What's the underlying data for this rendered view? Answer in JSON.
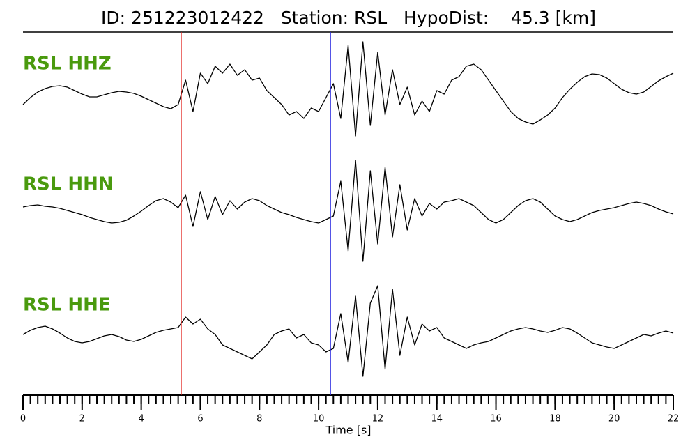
{
  "chart_data": {
    "type": "line",
    "title": "ID: 251223012422   Station: RSL   HypoDist:    45.3 [km]",
    "xlabel": "Time [s]",
    "xlim": [
      0,
      22
    ],
    "xticks": [
      0,
      2,
      4,
      6,
      8,
      10,
      12,
      14,
      16,
      18,
      20,
      22
    ],
    "xminorticks": [
      0,
      0.25,
      0.5,
      0.75,
      1,
      1.25,
      1.5,
      1.75,
      2,
      2.25,
      2.5,
      2.75,
      3,
      3.25,
      3.5,
      3.75,
      4,
      4.25,
      4.5,
      4.75,
      5,
      5.25,
      5.5,
      5.75,
      6,
      6.25,
      6.5,
      6.75,
      7,
      7.25,
      7.5,
      7.75,
      8,
      8.25,
      8.5,
      8.75,
      9,
      9.25,
      9.5,
      9.75,
      10,
      10.25,
      10.5,
      10.75,
      11,
      11.25,
      11.5,
      11.75,
      12,
      12.25,
      12.5,
      12.75,
      13,
      13.25,
      13.5,
      13.75,
      14,
      14.25,
      14.5,
      14.75,
      15,
      15.25,
      15.5,
      15.75,
      16,
      16.25,
      16.5,
      16.75,
      17,
      17.25,
      17.5,
      17.75,
      18,
      18.25,
      18.5,
      18.75,
      19,
      19.25,
      19.5,
      19.75,
      20,
      20.25,
      20.5,
      20.75,
      21,
      21.25,
      21.5,
      21.75,
      22
    ],
    "ylim": [
      -100,
      100
    ],
    "label_color": "#4a9a0e",
    "picks": [
      {
        "x": 5.35,
        "color": "#e0201a"
      },
      {
        "x": 10.4,
        "color": "#2a2ae0"
      }
    ],
    "x": [
      0,
      0.25,
      0.5,
      0.75,
      1,
      1.25,
      1.5,
      1.75,
      2,
      2.25,
      2.5,
      2.75,
      3,
      3.25,
      3.5,
      3.75,
      4,
      4.25,
      4.5,
      4.75,
      5,
      5.25,
      5.5,
      5.75,
      6,
      6.25,
      6.5,
      6.75,
      7,
      7.25,
      7.5,
      7.75,
      8,
      8.25,
      8.5,
      8.75,
      9,
      9.25,
      9.5,
      9.75,
      10,
      10.25,
      10.5,
      10.75,
      11,
      11.25,
      11.5,
      11.75,
      12,
      12.25,
      12.5,
      12.75,
      13,
      13.25,
      13.5,
      13.75,
      14,
      14.25,
      14.5,
      14.75,
      15,
      15.25,
      15.5,
      15.75,
      16,
      16.25,
      16.5,
      16.75,
      17,
      17.25,
      17.5,
      17.75,
      18,
      18.25,
      18.5,
      18.75,
      19,
      19.25,
      19.5,
      19.75,
      20,
      20.25,
      20.5,
      20.75,
      21,
      21.25,
      21.5,
      21.75,
      22
    ],
    "series": [
      {
        "name": "RSL HHZ",
        "color": "#000000",
        "values": [
          -10,
          0,
          8,
          13,
          16,
          17,
          15,
          10,
          5,
          1,
          1,
          4,
          7,
          9,
          8,
          6,
          2,
          -3,
          -8,
          -13,
          -16,
          -10,
          25,
          -20,
          35,
          20,
          45,
          35,
          48,
          32,
          40,
          25,
          28,
          10,
          0,
          -10,
          -25,
          -20,
          -30,
          -15,
          -20,
          0,
          20,
          -30,
          75,
          -55,
          80,
          -40,
          65,
          -25,
          40,
          -10,
          15,
          -25,
          -5,
          -20,
          10,
          5,
          25,
          30,
          45,
          48,
          40,
          25,
          10,
          -5,
          -20,
          -30,
          -35,
          -38,
          -32,
          -25,
          -15,
          0,
          12,
          22,
          30,
          34,
          33,
          28,
          20,
          12,
          7,
          5,
          8,
          16,
          24,
          30,
          35
        ]
      },
      {
        "name": "RSL HHN",
        "color": "#000000",
        "values": [
          3,
          5,
          6,
          4,
          3,
          1,
          -2,
          -5,
          -8,
          -12,
          -15,
          -18,
          -20,
          -19,
          -16,
          -10,
          -3,
          5,
          12,
          15,
          10,
          2,
          20,
          -25,
          25,
          -15,
          18,
          -8,
          12,
          0,
          10,
          15,
          12,
          5,
          0,
          -5,
          -8,
          -12,
          -15,
          -18,
          -20,
          -15,
          -10,
          40,
          -60,
          70,
          -75,
          55,
          -50,
          60,
          -40,
          35,
          -30,
          15,
          -10,
          8,
          0,
          10,
          12,
          15,
          10,
          5,
          -5,
          -15,
          -20,
          -15,
          -5,
          5,
          12,
          15,
          10,
          0,
          -10,
          -15,
          -18,
          -15,
          -10,
          -5,
          -2,
          0,
          2,
          5,
          8,
          10,
          8,
          5,
          0,
          -4,
          -7
        ]
      },
      {
        "name": "RSL HHE",
        "color": "#000000",
        "values": [
          0,
          6,
          10,
          12,
          8,
          2,
          -5,
          -10,
          -12,
          -10,
          -6,
          -2,
          0,
          -3,
          -8,
          -10,
          -7,
          -2,
          3,
          6,
          8,
          10,
          25,
          15,
          22,
          8,
          0,
          -15,
          -20,
          -25,
          -30,
          -35,
          -25,
          -15,
          0,
          5,
          8,
          -5,
          0,
          -12,
          -15,
          -25,
          -20,
          30,
          -40,
          55,
          -60,
          45,
          70,
          -50,
          65,
          -30,
          25,
          -15,
          15,
          5,
          10,
          -5,
          -10,
          -15,
          -20,
          -15,
          -12,
          -10,
          -5,
          0,
          5,
          8,
          10,
          8,
          5,
          3,
          6,
          10,
          8,
          2,
          -5,
          -12,
          -15,
          -18,
          -20,
          -15,
          -10,
          -5,
          0,
          -2,
          2,
          5,
          2
        ]
      }
    ]
  }
}
